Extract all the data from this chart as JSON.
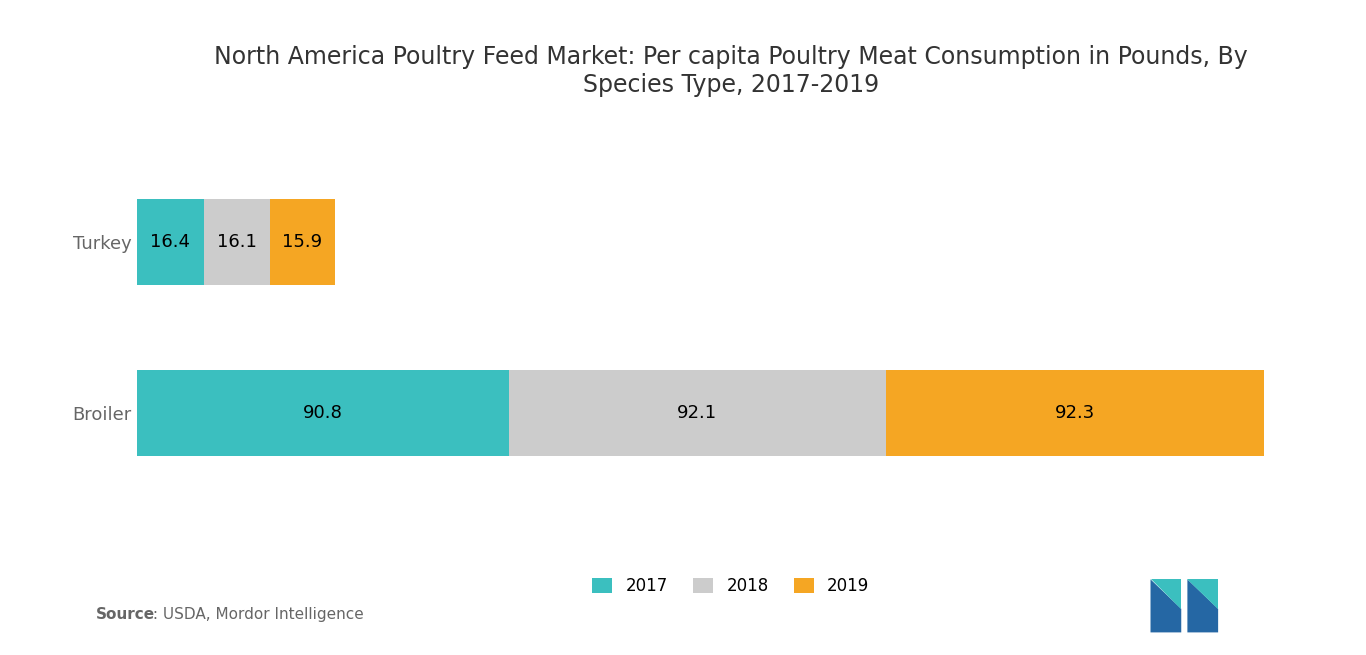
{
  "title_line1": "North America Poultry Feed Market: Per capita Poultry Meat Consumption in Pounds, By",
  "title_line2": "Species Type, 2017-2019",
  "categories": [
    "Turkey",
    "Broiler"
  ],
  "values_2017": [
    16.4,
    90.8
  ],
  "values_2018": [
    16.1,
    92.1
  ],
  "values_2019": [
    15.9,
    92.3
  ],
  "color_2017": "#3bbfbf",
  "color_2018": "#cccccc",
  "color_2019": "#f5a623",
  "source_bold": "Source",
  "source_rest": " : USDA, Mordor Intelligence",
  "background_color": "#ffffff",
  "bar_height": 0.5,
  "title_fontsize": 17,
  "label_fontsize": 13,
  "value_fontsize": 13,
  "logo_color_left": "#2e86c1",
  "logo_color_right": "#3bbfbf"
}
